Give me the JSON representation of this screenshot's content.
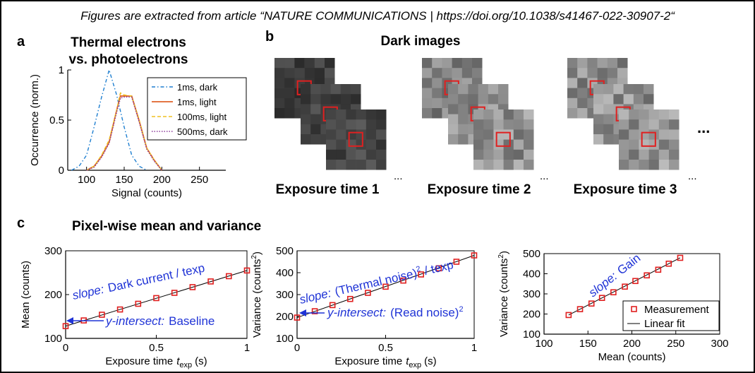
{
  "caption": "Figures are extracted from article “NATURE COMMUNICATIONS | https://doi.org/10.1038/s41467-022-30907-2“",
  "panel_a": {
    "letter": "a",
    "title_line1": "Thermal electrons",
    "title_line2": "vs. photoelectrons",
    "colors": {
      "dark1": "#1f7fd0",
      "light1": "#e0622a",
      "light100": "#f0c020",
      "dark500": "#8c3a9a"
    }
  },
  "panel_b": {
    "letter": "b",
    "title": "Dark images",
    "labels": [
      "Exposure time 1",
      "Exposure time 2",
      "Exposure time 3"
    ],
    "ellipsis": "...",
    "big_ellipsis": "...",
    "highlight_color": "#e02020"
  },
  "panel_c": {
    "letter": "c",
    "title": "Pixel-wise mean and variance",
    "plot1": {
      "slope_prefix": "slope:",
      "slope_text": "Dark current / texp",
      "intersect_prefix": "y-intersect:",
      "intersect_text": "Baseline"
    },
    "plot2": {
      "slope_prefix": "slope:",
      "slope_text1": "(Thermal noise)",
      "slope_sup": "2",
      "slope_text2": "/ texp",
      "intersect_prefix": "y-intersect:",
      "intersect_text": "(Read noise)",
      "intersect_sup": "2"
    },
    "plot3": {
      "slope_prefix": "slope:",
      "slope_text": "Gain"
    },
    "marker_color": "#e02020"
  },
  "chart_data": [
    {
      "type": "line",
      "panel": "a",
      "xlabel": "Signal (counts)",
      "ylabel": "Occurrence (norm.)",
      "xlim": [
        75,
        285
      ],
      "ylim": [
        0,
        1
      ],
      "xticks": [
        100,
        150,
        200,
        250
      ],
      "yticks": [
        0,
        0.5,
        1
      ],
      "legend_position": "top-right",
      "series": [
        {
          "name": "1ms, dark",
          "x": [
            80,
            90,
            100,
            110,
            120,
            130,
            140,
            150,
            160,
            170,
            180
          ],
          "y": [
            0,
            0.04,
            0.15,
            0.43,
            0.73,
            1.0,
            0.75,
            0.43,
            0.15,
            0.04,
            0
          ]
        },
        {
          "name": "1ms, light",
          "x": [
            100,
            110,
            120,
            130,
            140,
            145,
            150,
            160,
            170,
            180,
            190,
            200
          ],
          "y": [
            0,
            0.04,
            0.14,
            0.28,
            0.6,
            0.74,
            0.74,
            0.74,
            0.49,
            0.22,
            0.1,
            0
          ]
        },
        {
          "name": "100ms, light",
          "x": [
            100,
            110,
            120,
            130,
            140,
            145,
            150,
            160,
            170,
            180,
            190,
            200
          ],
          "y": [
            0,
            0.04,
            0.15,
            0.3,
            0.6,
            0.77,
            0.75,
            0.74,
            0.5,
            0.22,
            0.1,
            0
          ]
        },
        {
          "name": "500ms, dark",
          "x": [
            100,
            110,
            120,
            130,
            140,
            145,
            150,
            160,
            170,
            180,
            190,
            200
          ],
          "y": [
            0,
            0.03,
            0.13,
            0.27,
            0.58,
            0.72,
            0.73,
            0.73,
            0.48,
            0.21,
            0.09,
            0
          ]
        }
      ]
    },
    {
      "type": "scatter",
      "panel": "c-left",
      "xlabel": "Exposure time",
      "xlabel_symbol": "t",
      "xlabel_sub": "exp",
      "xlabel_unit": "(s)",
      "ylabel": "Mean (counts)",
      "xlim": [
        0,
        1
      ],
      "ylim": [
        100,
        300
      ],
      "xticks": [
        0,
        0.5,
        1
      ],
      "yticks": [
        100,
        200,
        300
      ],
      "series": [
        {
          "name": "Measurement",
          "marker": "square",
          "x": [
            0,
            0.1,
            0.2,
            0.3,
            0.4,
            0.5,
            0.6,
            0.7,
            0.8,
            0.9,
            1.0
          ],
          "y": [
            128,
            141,
            154,
            166,
            179,
            192,
            204,
            217,
            230,
            242,
            255
          ]
        },
        {
          "name": "Linear fit",
          "x": [
            0,
            1.0
          ],
          "y": [
            128,
            255
          ]
        }
      ]
    },
    {
      "type": "scatter",
      "panel": "c-middle",
      "xlabel": "Exposure time",
      "xlabel_symbol": "t",
      "xlabel_sub": "exp",
      "xlabel_unit": "(s)",
      "ylabel": "Variance (counts",
      "ylabel_sup": "2",
      "ylabel_end": ")",
      "xlim": [
        0,
        1
      ],
      "ylim": [
        100,
        500
      ],
      "xticks": [
        0,
        0.5,
        1
      ],
      "yticks": [
        100,
        200,
        300,
        400,
        500
      ],
      "series": [
        {
          "name": "Measurement",
          "marker": "square",
          "x": [
            0,
            0.1,
            0.2,
            0.3,
            0.4,
            0.5,
            0.6,
            0.7,
            0.8,
            0.9,
            1.0
          ],
          "y": [
            195,
            224,
            252,
            280,
            308,
            336,
            364,
            392,
            420,
            450,
            479
          ]
        },
        {
          "name": "Linear fit",
          "x": [
            0,
            1.0
          ],
          "y": [
            195,
            479
          ]
        }
      ]
    },
    {
      "type": "scatter",
      "panel": "c-right",
      "xlabel": "Mean (counts)",
      "ylabel": "Variance (counts",
      "ylabel_sup": "2",
      "ylabel_end": ")",
      "xlim": [
        100,
        300
      ],
      "ylim": [
        100,
        500
      ],
      "xticks": [
        100,
        150,
        200,
        250,
        300
      ],
      "yticks": [
        100,
        200,
        300,
        400,
        500
      ],
      "legend_position": "bottom-right",
      "series": [
        {
          "name": "Measurement",
          "marker": "square",
          "x": [
            128,
            141,
            154,
            166,
            179,
            192,
            204,
            217,
            230,
            242,
            255
          ],
          "y": [
            195,
            224,
            252,
            280,
            308,
            336,
            364,
            392,
            420,
            450,
            479
          ]
        },
        {
          "name": "Linear fit",
          "x": [
            128,
            255
          ],
          "y": [
            195,
            479
          ]
        }
      ]
    }
  ]
}
